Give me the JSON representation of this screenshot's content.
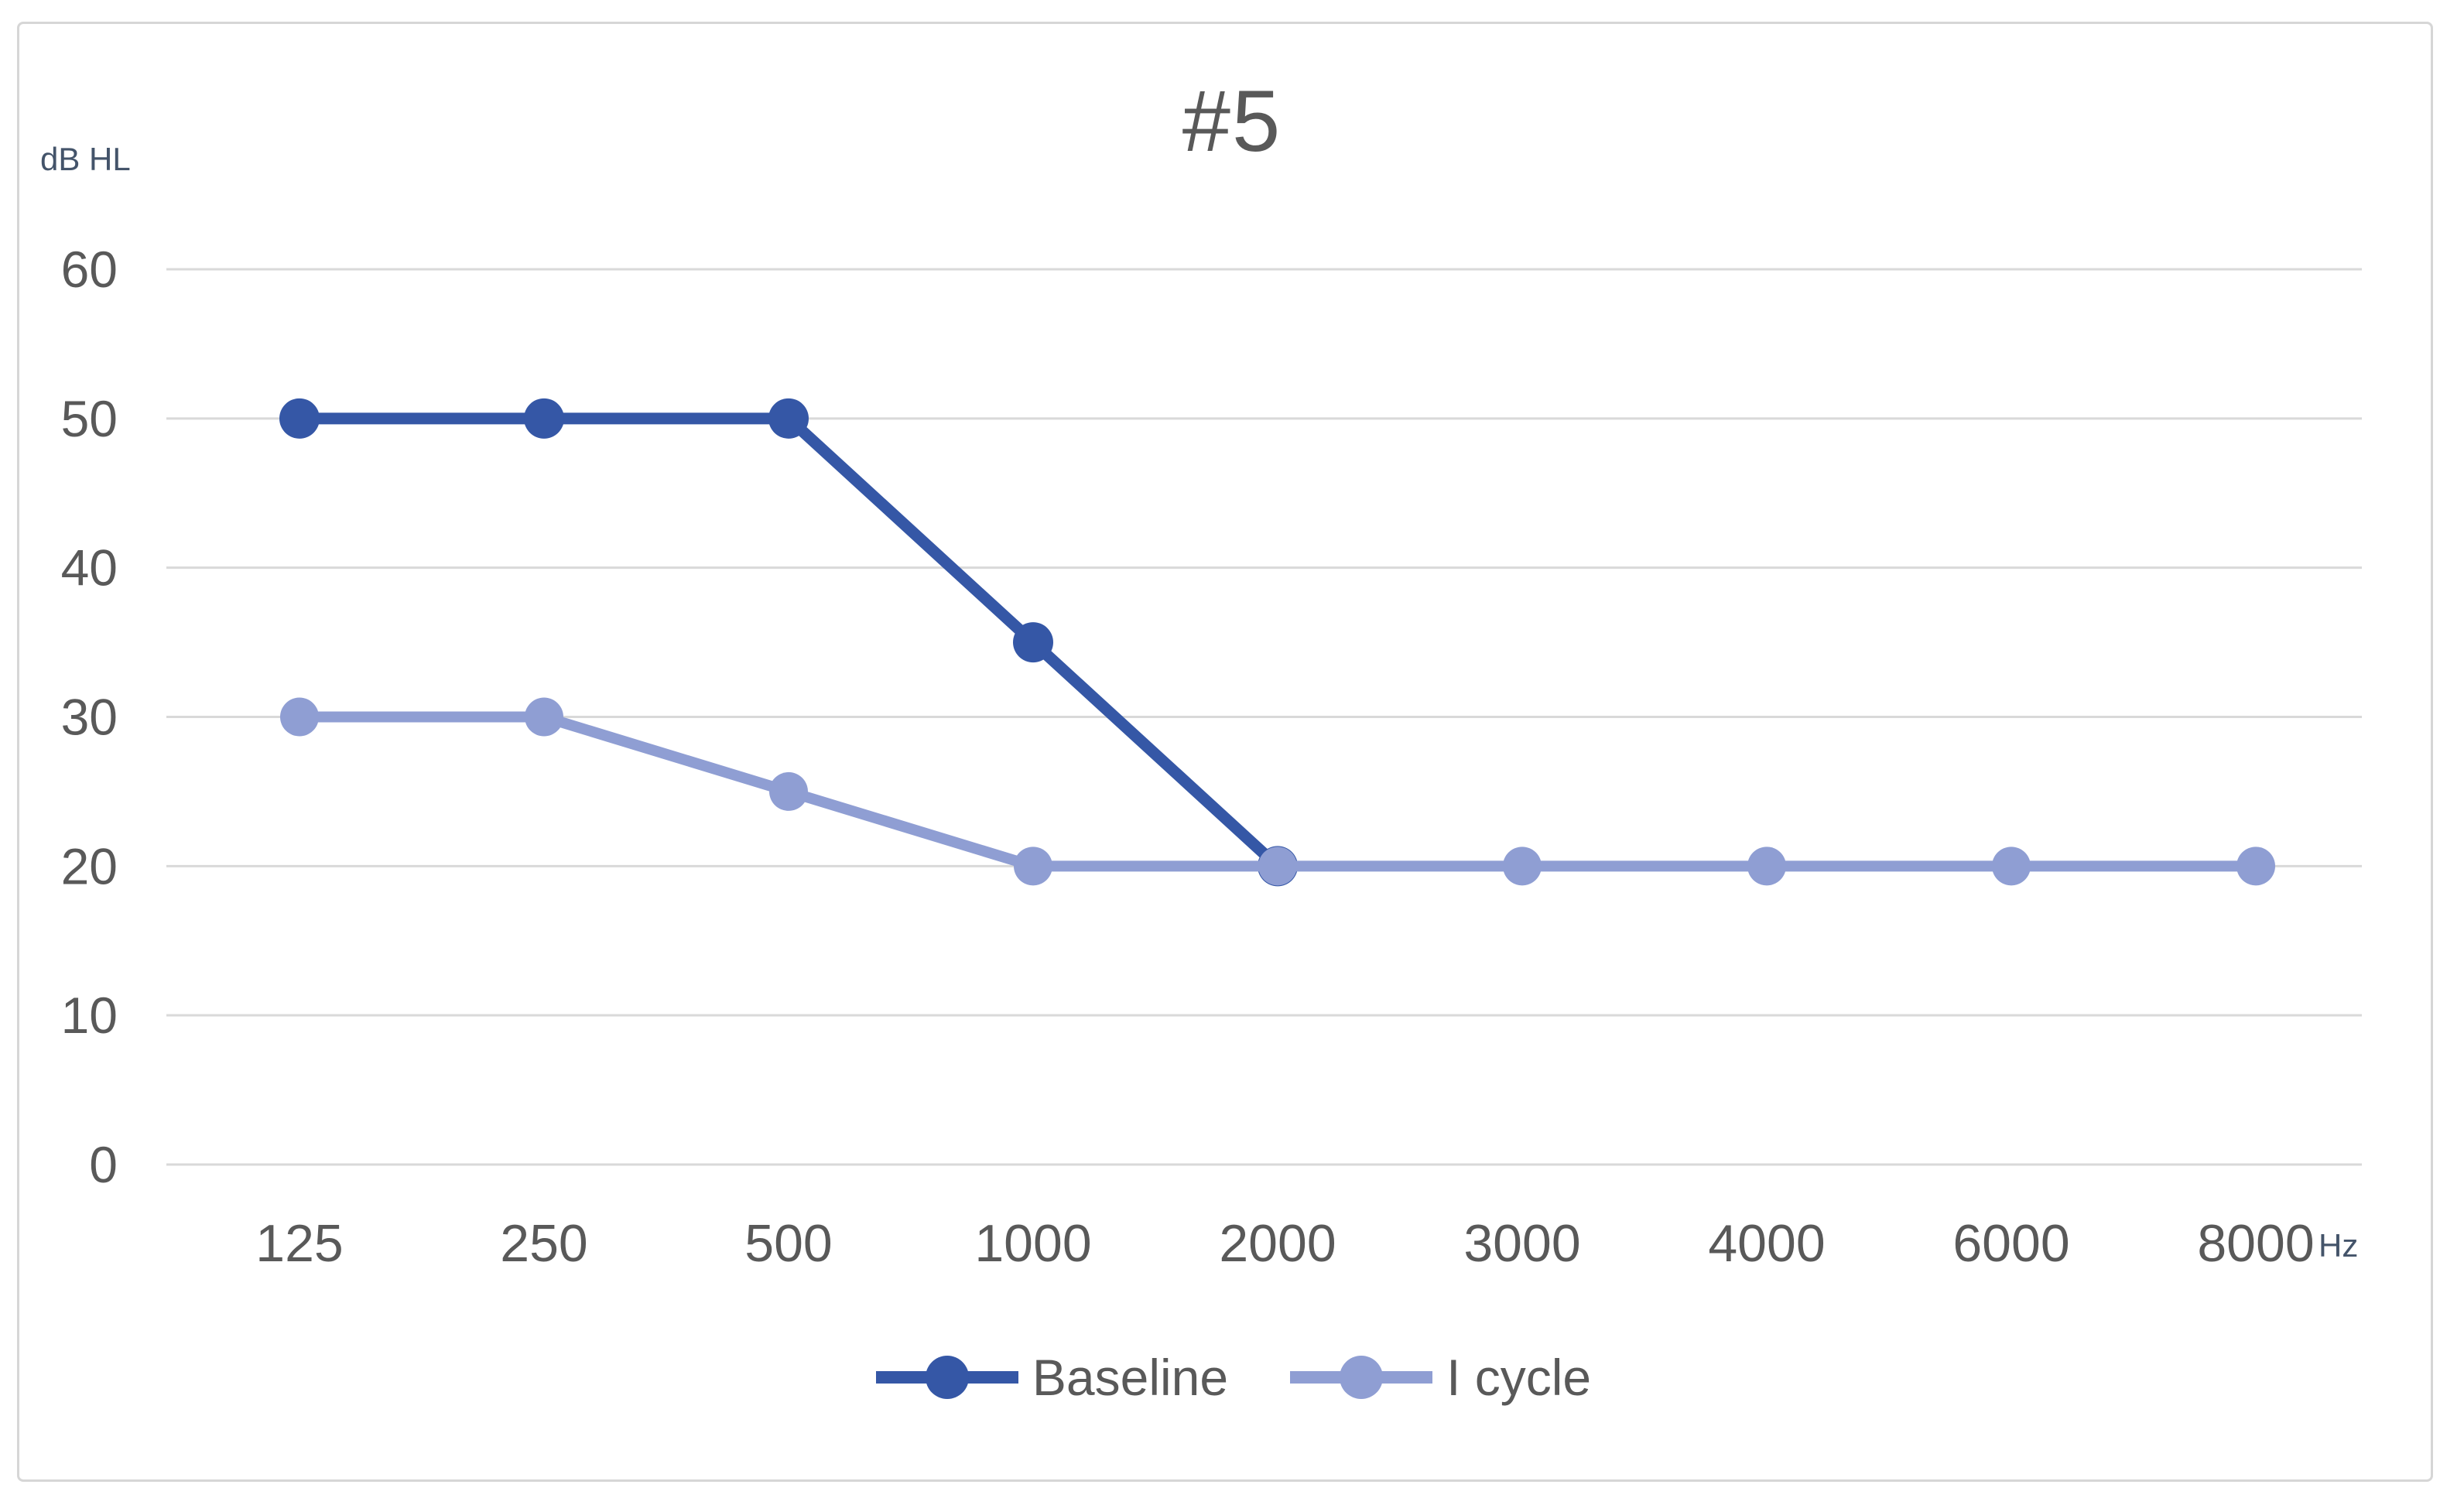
{
  "title": "#5",
  "chart_data": {
    "type": "line",
    "title": "#5",
    "categories": [
      "125",
      "250",
      "500",
      "1000",
      "2000",
      "3000",
      "4000",
      "6000",
      "8000"
    ],
    "series": [
      {
        "name": "Baseline",
        "color": "#3557A6",
        "marker_radius": 26,
        "line_width": 15,
        "values": [
          50,
          50,
          50,
          35,
          20,
          null,
          null,
          null,
          null
        ]
      },
      {
        "name": "I cycle",
        "color": "#8F9ED3",
        "marker_radius": 25,
        "line_width": 14,
        "values": [
          30,
          30,
          25,
          20,
          20,
          20,
          20,
          20,
          20
        ]
      }
    ],
    "ylabel": "dB HL",
    "xlabel": "Hz",
    "yticks": [
      0,
      10,
      20,
      30,
      40,
      50,
      60
    ],
    "ylim": [
      0,
      60
    ],
    "grid": true,
    "legend_position": "bottom",
    "colors": {
      "grid": "#d9d9d9",
      "axis_text": "#595959",
      "unit_text": "#44546a",
      "frame_border": "#d6d6d6",
      "background": "#ffffff"
    }
  }
}
